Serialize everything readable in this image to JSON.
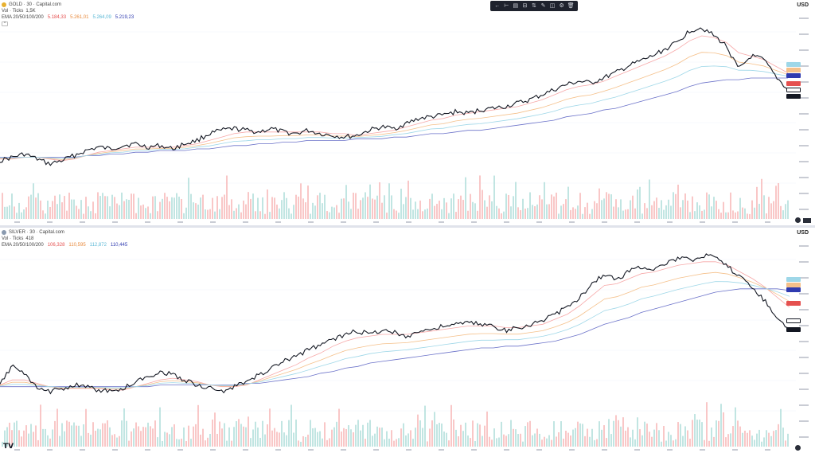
{
  "toolbar": {
    "icons": [
      "arrow-left-icon",
      "cursor-line-icon",
      "align-icon",
      "sliders-icon",
      "layers-icon",
      "pencil-icon",
      "eye-icon",
      "settings-icon",
      "trash-icon"
    ],
    "glyphs": [
      "←",
      "⊢",
      "▤",
      "⊟",
      "⇅",
      "✎",
      "◫",
      "⚙",
      "🗑"
    ]
  },
  "colors": {
    "candle": "#131722",
    "ema20": "#f7a8a8",
    "ema50": "#f5c08a",
    "ema100": "#9ed7e8",
    "ema200": "#6b72c9",
    "vol_up": "#b2dfdb",
    "vol_down": "#f8b9b9",
    "gold_dot": "#e8b130",
    "silver_dot": "#8a9aaf",
    "price_line": "#131722"
  },
  "gold": {
    "symbol": "GOLD · 30 · Capital.com",
    "vol_label": "Vol · Ticks",
    "vol_value": "1,5K",
    "ema_label": "EMA 20/50/100/200",
    "ema20": "5.184,33",
    "ema50": "5.261,01",
    "ema100": "5.264,09",
    "ema200": "5.219,23",
    "currency": "USD"
  },
  "silver": {
    "symbol": "SILVER · 30 · Capital.com",
    "vol_label": "Vol · Ticks",
    "vol_value": "418",
    "ema_label": "EMA 20/50/100/200",
    "ema20": "106,328",
    "ema50": "110,595",
    "ema100": "112,872",
    "ema200": "110,445",
    "currency": "USD"
  },
  "chart_data": [
    {
      "type": "line",
      "title": "GOLD · 30 · Capital.com",
      "series": [
        {
          "name": "GOLD",
          "values": [
            0.18,
            0.2,
            0.22,
            0.19,
            0.16,
            0.18,
            0.21,
            0.24,
            0.26,
            0.25,
            0.27,
            0.28,
            0.26,
            0.27,
            0.25,
            0.28,
            0.3,
            0.34,
            0.36,
            0.37,
            0.36,
            0.35,
            0.37,
            0.35,
            0.34,
            0.36,
            0.34,
            0.33,
            0.32,
            0.33,
            0.36,
            0.38,
            0.37,
            0.4,
            0.43,
            0.44,
            0.45,
            0.47,
            0.46,
            0.48,
            0.49,
            0.5,
            0.52,
            0.54,
            0.57,
            0.6,
            0.63,
            0.65,
            0.64,
            0.67,
            0.7,
            0.74,
            0.77,
            0.8,
            0.84,
            0.88,
            0.95,
            0.97,
            0.92,
            0.86,
            0.72,
            0.8,
            0.78,
            0.68,
            0.6
          ]
        },
        {
          "name": "EMA 20",
          "values": [
            0.19,
            0.19,
            0.2,
            0.2,
            0.19,
            0.18,
            0.19,
            0.21,
            0.23,
            0.24,
            0.25,
            0.26,
            0.26,
            0.26,
            0.26,
            0.27,
            0.28,
            0.3,
            0.32,
            0.34,
            0.35,
            0.35,
            0.35,
            0.35,
            0.35,
            0.35,
            0.35,
            0.34,
            0.34,
            0.33,
            0.34,
            0.35,
            0.36,
            0.38,
            0.4,
            0.42,
            0.43,
            0.45,
            0.46,
            0.47,
            0.48,
            0.49,
            0.5,
            0.52,
            0.54,
            0.57,
            0.6,
            0.62,
            0.63,
            0.65,
            0.68,
            0.71,
            0.74,
            0.77,
            0.8,
            0.84,
            0.89,
            0.92,
            0.91,
            0.88,
            0.82,
            0.8,
            0.78,
            0.74,
            0.7
          ]
        },
        {
          "name": "EMA 200",
          "values": [
            0.2,
            0.2,
            0.2,
            0.2,
            0.2,
            0.2,
            0.2,
            0.21,
            0.21,
            0.22,
            0.22,
            0.23,
            0.23,
            0.24,
            0.24,
            0.24,
            0.25,
            0.25,
            0.26,
            0.27,
            0.27,
            0.28,
            0.28,
            0.29,
            0.29,
            0.3,
            0.3,
            0.3,
            0.3,
            0.31,
            0.31,
            0.31,
            0.32,
            0.32,
            0.33,
            0.34,
            0.34,
            0.35,
            0.36,
            0.36,
            0.37,
            0.38,
            0.39,
            0.4,
            0.41,
            0.42,
            0.44,
            0.45,
            0.46,
            0.48,
            0.49,
            0.51,
            0.53,
            0.55,
            0.57,
            0.59,
            0.62,
            0.64,
            0.65,
            0.66,
            0.66,
            0.67,
            0.67,
            0.67,
            0.67
          ]
        }
      ]
    },
    {
      "type": "line",
      "title": "SILVER · 30 · Capital.com",
      "series": [
        {
          "name": "SILVER",
          "values": [
            0.2,
            0.32,
            0.26,
            0.18,
            0.16,
            0.18,
            0.2,
            0.19,
            0.17,
            0.16,
            0.18,
            0.22,
            0.25,
            0.28,
            0.26,
            0.23,
            0.2,
            0.18,
            0.16,
            0.19,
            0.22,
            0.26,
            0.3,
            0.34,
            0.37,
            0.41,
            0.44,
            0.47,
            0.5,
            0.52,
            0.5,
            0.53,
            0.51,
            0.49,
            0.52,
            0.53,
            0.55,
            0.56,
            0.57,
            0.56,
            0.55,
            0.52,
            0.54,
            0.56,
            0.58,
            0.62,
            0.66,
            0.72,
            0.8,
            0.86,
            0.82,
            0.88,
            0.9,
            0.89,
            0.92,
            0.95,
            0.94,
            0.97,
            0.95,
            0.9,
            0.84,
            0.78,
            0.7,
            0.6,
            0.52
          ]
        },
        {
          "name": "EMA 20",
          "values": [
            0.2,
            0.23,
            0.23,
            0.21,
            0.19,
            0.18,
            0.18,
            0.18,
            0.18,
            0.17,
            0.17,
            0.19,
            0.21,
            0.23,
            0.24,
            0.23,
            0.22,
            0.2,
            0.19,
            0.19,
            0.2,
            0.23,
            0.26,
            0.29,
            0.32,
            0.36,
            0.39,
            0.43,
            0.46,
            0.48,
            0.49,
            0.5,
            0.5,
            0.5,
            0.51,
            0.52,
            0.53,
            0.54,
            0.55,
            0.55,
            0.55,
            0.54,
            0.54,
            0.55,
            0.56,
            0.59,
            0.62,
            0.67,
            0.73,
            0.79,
            0.8,
            0.83,
            0.86,
            0.87,
            0.89,
            0.91,
            0.92,
            0.93,
            0.93,
            0.91,
            0.87,
            0.83,
            0.78,
            0.72,
            0.66
          ]
        },
        {
          "name": "EMA 200",
          "values": [
            0.19,
            0.19,
            0.19,
            0.19,
            0.19,
            0.19,
            0.19,
            0.19,
            0.19,
            0.19,
            0.19,
            0.19,
            0.19,
            0.2,
            0.2,
            0.2,
            0.2,
            0.2,
            0.2,
            0.2,
            0.21,
            0.21,
            0.22,
            0.23,
            0.24,
            0.25,
            0.27,
            0.28,
            0.3,
            0.31,
            0.33,
            0.34,
            0.35,
            0.36,
            0.37,
            0.38,
            0.39,
            0.4,
            0.41,
            0.42,
            0.42,
            0.43,
            0.43,
            0.44,
            0.45,
            0.46,
            0.48,
            0.5,
            0.53,
            0.56,
            0.58,
            0.6,
            0.63,
            0.65,
            0.67,
            0.69,
            0.71,
            0.73,
            0.75,
            0.76,
            0.77,
            0.77,
            0.77,
            0.77,
            0.76
          ]
        }
      ]
    }
  ]
}
